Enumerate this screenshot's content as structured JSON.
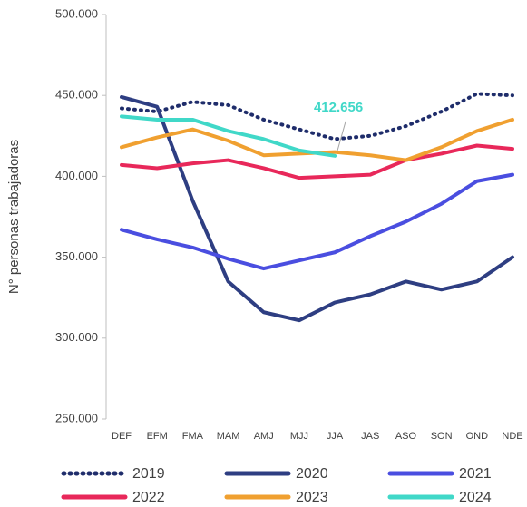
{
  "chart_data": {
    "type": "line",
    "y_label": "N° personas trabajadoras",
    "categories": [
      "DEF",
      "EFM",
      "FMA",
      "MAM",
      "AMJ",
      "MJJ",
      "JJA",
      "JAS",
      "ASO",
      "SON",
      "OND",
      "NDE"
    ],
    "ylim": [
      250000,
      500000
    ],
    "yticks": [
      {
        "value": 250000,
        "label": "250.000"
      },
      {
        "value": 300000,
        "label": "300.000"
      },
      {
        "value": 350000,
        "label": "350.000"
      },
      {
        "value": 400000,
        "label": "400.000"
      },
      {
        "value": 450000,
        "label": "450.000"
      },
      {
        "value": 500000,
        "label": "500.000"
      }
    ],
    "series": [
      {
        "name": "2019",
        "color": "#1f2d6b",
        "line_style": "dotted",
        "values": [
          442000,
          440000,
          446000,
          444000,
          435000,
          429000,
          423000,
          425000,
          431000,
          440000,
          451000,
          450000
        ]
      },
      {
        "name": "2020",
        "color": "#2e3e82",
        "line_style": "solid",
        "values": [
          449000,
          443000,
          385000,
          335000,
          316000,
          311000,
          322000,
          327000,
          335000,
          330000,
          335000,
          350000
        ]
      },
      {
        "name": "2021",
        "color": "#4a4ee0",
        "line_style": "solid",
        "values": [
          367000,
          361000,
          356000,
          349000,
          343000,
          348000,
          353000,
          363000,
          372000,
          383000,
          397000,
          401000
        ]
      },
      {
        "name": "2022",
        "color": "#e8285a",
        "line_style": "solid",
        "values": [
          407000,
          405000,
          408000,
          410000,
          405000,
          399000,
          400000,
          401000,
          410000,
          414000,
          419000,
          417000
        ]
      },
      {
        "name": "2023",
        "color": "#f0a030",
        "line_style": "solid",
        "values": [
          418000,
          424000,
          429000,
          422000,
          413000,
          414000,
          415000,
          413000,
          410000,
          418000,
          428000,
          435000
        ]
      },
      {
        "name": "2024",
        "color": "#40d8c8",
        "line_style": "solid",
        "values": [
          437000,
          435000,
          435000,
          428000,
          423000,
          416000,
          412656,
          null,
          null,
          null,
          null,
          null
        ],
        "value_labels": [
          null,
          null,
          null,
          null,
          null,
          null,
          "412.656",
          null,
          null,
          null,
          null,
          null
        ]
      }
    ]
  }
}
